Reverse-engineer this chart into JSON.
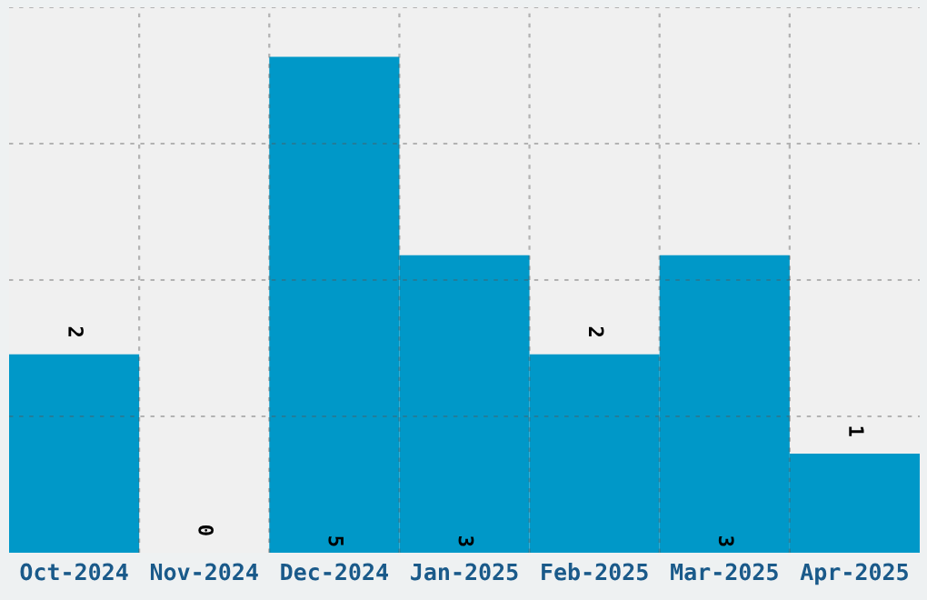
{
  "chart_data": {
    "type": "bar",
    "categories": [
      "Oct-2024",
      "Nov-2024",
      "Dec-2024",
      "Jan-2025",
      "Feb-2025",
      "Mar-2025",
      "Apr-2025"
    ],
    "values": [
      2,
      0,
      5,
      3,
      2,
      3,
      1
    ],
    "color": "#0098c8",
    "ylim": [
      0,
      5.5
    ],
    "yticks": [
      {
        "value": 1.375,
        "label": null
      },
      {
        "value": 2.75,
        "label": null
      },
      {
        "value": 4.125,
        "label": null
      },
      {
        "value": 5.5,
        "label": null
      }
    ],
    "tick_labels": "x",
    "grid": true,
    "data_labels": true
  }
}
